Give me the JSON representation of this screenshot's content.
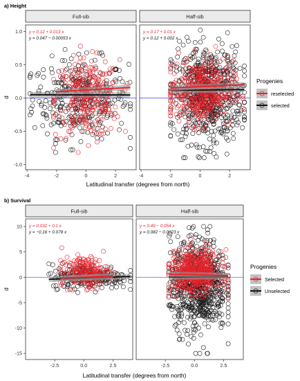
{
  "figure": {
    "colors": {
      "selected_points": "#e8232b",
      "other_points": "#1a1a1a",
      "ref_line": "#5b5bf0",
      "strip_bg": "#ebebeb",
      "band": "#9a9a9a"
    }
  },
  "chart_data": [
    {
      "type": "scatter",
      "title": "a) Height",
      "xlabel": "Latitudinal transfer (degrees from north)",
      "ylabel": "d",
      "xlim": [
        -4.1,
        3.4
      ],
      "ylim": [
        -1.08,
        1.1
      ],
      "yticks": [
        -1.0,
        -0.5,
        0.0,
        0.5,
        1.0
      ],
      "yticklabels": [
        "-1.0",
        "-0.5",
        "0.0",
        "0.5",
        "1.0"
      ],
      "xticks": [
        -4,
        -2,
        0,
        2
      ],
      "xticklabels": [
        "-4",
        "-2",
        "0",
        "2"
      ],
      "hline": 0,
      "legend": {
        "title": "Progenies",
        "position": "right",
        "entries": [
          "reselected",
          "selected"
        ]
      },
      "panels": [
        {
          "strip": "Full-sib",
          "eq_selected": "y = 0.12 + 0.013 x",
          "eq_other": "y = 0.047 − 0.00053 x",
          "fit_selected": {
            "intercept": 0.12,
            "slope": 0.013,
            "x_range": [
              -2.0,
              3.0
            ]
          },
          "fit_other": {
            "intercept": 0.047,
            "slope": -0.00053,
            "x_range": [
              -3.8,
              3.0
            ]
          },
          "other_cloud": {
            "x_range": [
              -3.8,
              3.0
            ],
            "y_range": [
              -0.82,
              0.8
            ],
            "count": 320
          },
          "selected_cloud": {
            "x_range": [
              -2.2,
              2.8
            ],
            "y_range": [
              -0.82,
              0.78
            ],
            "count": 300
          }
        },
        {
          "strip": "Half-sib",
          "eq_selected": "y = 0.17 + 0.01 x",
          "eq_other": "y = 0.12 + 0.002 x",
          "fit_selected": {
            "intercept": 0.17,
            "slope": 0.01,
            "x_range": [
              -2.0,
              3.0
            ]
          },
          "fit_other": {
            "intercept": 0.12,
            "slope": 0.002,
            "x_range": [
              -2.0,
              3.0
            ]
          },
          "other_cloud": {
            "x_range": [
              -2.0,
              3.0
            ],
            "y_range": [
              -0.9,
              1.07
            ],
            "count": 650
          },
          "selected_cloud": {
            "x_range": [
              -2.0,
              2.9
            ],
            "y_range": [
              -0.5,
              0.8
            ],
            "count": 420
          }
        }
      ]
    },
    {
      "type": "scatter",
      "title": "b) Survival",
      "xlabel": "Latitudinal transfer (degrees from north)",
      "ylabel": "d",
      "xlim": [
        -5.0,
        4.2
      ],
      "ylim": [
        -16.2,
        11.5
      ],
      "yticks": [
        -15,
        -10,
        -5,
        0,
        5,
        10
      ],
      "yticklabels": [
        "-15",
        "-10",
        "-5",
        "0",
        "5",
        "10"
      ],
      "xticks": [
        -2.5,
        0.0,
        2.5
      ],
      "xticklabels": [
        "-2.5",
        "0.0",
        "2.5"
      ],
      "hline": 0,
      "legend": {
        "title": "Progenies",
        "position": "right",
        "entries": [
          "Selected",
          "Unselected"
        ]
      },
      "panels": [
        {
          "strip": "Full-sib",
          "eq_selected": "y = 0.032 + 0.1 x",
          "eq_other": "y = −0.16 + 0.078 x",
          "fit_selected": {
            "intercept": 0.032,
            "slope": 0.1,
            "x_range": [
              -2.0,
              2.5
            ]
          },
          "fit_other": {
            "intercept": -0.16,
            "slope": 0.078,
            "x_range": [
              -3.0,
              4.0
            ]
          },
          "other_cloud": {
            "x_range": [
              -3.0,
              4.0
            ],
            "y_range": [
              -3.0,
              3.5
            ],
            "count": 230
          },
          "selected_cloud": {
            "x_range": [
              -2.0,
              2.6
            ],
            "y_range": [
              -2.5,
              5.8
            ],
            "count": 210
          }
        },
        {
          "strip": "Half-sib",
          "eq_selected": "y = 0.49 − 0.054 x",
          "eq_other": "y = 0.082 − 0.0023 x",
          "fit_selected": {
            "intercept": 0.49,
            "slope": -0.054,
            "x_range": [
              -2.2,
              2.9
            ]
          },
          "fit_other": {
            "intercept": 0.082,
            "slope": -0.0023,
            "x_range": [
              -2.2,
              2.9
            ]
          },
          "other_cloud": {
            "x_range": [
              -2.2,
              2.9
            ],
            "y_range": [
              -15.0,
              10.0
            ],
            "count": 720
          },
          "selected_cloud": {
            "x_range": [
              -2.2,
              2.9
            ],
            "y_range": [
              -4.0,
              7.5
            ],
            "count": 480
          }
        }
      ]
    }
  ]
}
